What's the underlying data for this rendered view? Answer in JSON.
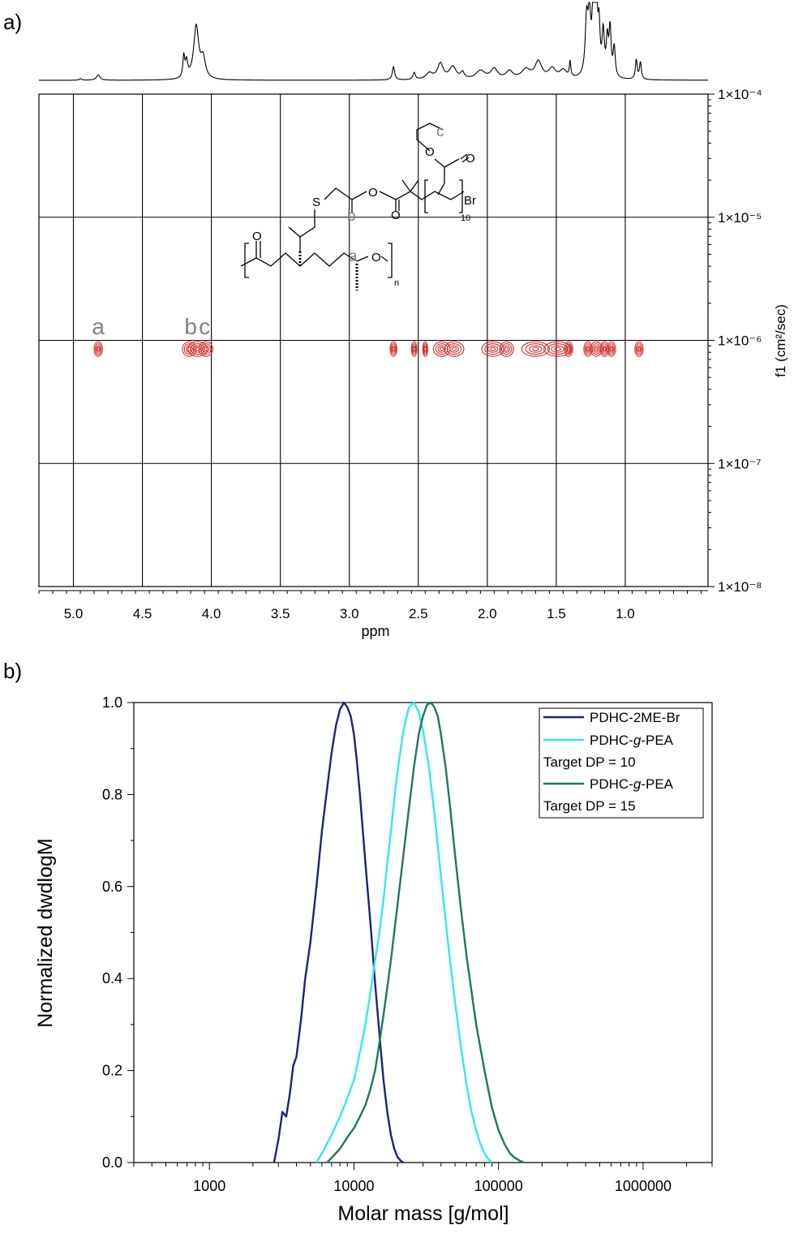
{
  "panel_a": {
    "label": "a)",
    "structure_labels": {
      "a": "a",
      "b": "b",
      "c": "c",
      "n": "n",
      "ten": "10",
      "br": "Br",
      "s": "S",
      "o": "O"
    },
    "peak_labels": [
      "a",
      "b",
      "c"
    ],
    "ppm_peak_positions": [
      4.82,
      4.15,
      4.05
    ],
    "chart_data": {
      "type": "contour",
      "title": "",
      "xlabel": "ppm",
      "ylabel": "f1 (cm²/sec)",
      "x_ticks": [
        "5.0",
        "4.5",
        "4.0",
        "3.5",
        "3.0",
        "2.5",
        "2.0",
        "1.5",
        "1.0"
      ],
      "x_tick_values": [
        5.0,
        4.5,
        4.0,
        3.5,
        3.0,
        2.5,
        2.0,
        1.5,
        1.0
      ],
      "xlim": [
        5.25,
        0.4
      ],
      "y_scale": "log",
      "y_ticks": [
        "1×10⁻⁴",
        "1×10⁻⁵",
        "1×10⁻⁶",
        "1×10⁻⁷",
        "1×10⁻⁸"
      ],
      "y_tick_values": [
        0.0001,
        1e-05,
        1e-06,
        1e-07,
        1e-08
      ],
      "grid": true,
      "diffusion_coefficient": 8.5e-07,
      "contour_peaks": [
        {
          "ppm": 4.82,
          "width": 0.03
        },
        {
          "ppm": 4.16,
          "width": 0.05
        },
        {
          "ppm": 4.1,
          "width": 0.07
        },
        {
          "ppm": 4.04,
          "width": 0.05
        },
        {
          "ppm": 2.68,
          "width": 0.025
        },
        {
          "ppm": 2.53,
          "width": 0.02
        },
        {
          "ppm": 2.45,
          "width": 0.01
        },
        {
          "ppm": 2.33,
          "width": 0.06
        },
        {
          "ppm": 2.24,
          "width": 0.07
        },
        {
          "ppm": 1.96,
          "width": 0.08
        },
        {
          "ppm": 1.86,
          "width": 0.05
        },
        {
          "ppm": 1.65,
          "width": 0.1
        },
        {
          "ppm": 1.49,
          "width": 0.1
        },
        {
          "ppm": 1.41,
          "width": 0.03
        },
        {
          "ppm": 1.27,
          "width": 0.03
        },
        {
          "ppm": 1.21,
          "width": 0.04
        },
        {
          "ppm": 1.15,
          "width": 0.03
        },
        {
          "ppm": 1.1,
          "width": 0.03
        },
        {
          "ppm": 0.9,
          "width": 0.03
        }
      ],
      "projection_peaks": [
        {
          "ppm": 4.82,
          "h": 0.07,
          "w": 0.015
        },
        {
          "ppm": 4.95,
          "h": 0.02,
          "w": 0.01
        },
        {
          "ppm": 4.2,
          "h": 0.27,
          "w": 0.008
        },
        {
          "ppm": 4.18,
          "h": 0.2,
          "w": 0.01
        },
        {
          "ppm": 4.11,
          "h": 0.68,
          "w": 0.022
        },
        {
          "ppm": 4.06,
          "h": 0.25,
          "w": 0.02
        },
        {
          "ppm": 2.68,
          "h": 0.17,
          "w": 0.01
        },
        {
          "ppm": 2.53,
          "h": 0.09,
          "w": 0.01
        },
        {
          "ppm": 2.42,
          "h": 0.08,
          "w": 0.03
        },
        {
          "ppm": 2.34,
          "h": 0.2,
          "w": 0.025
        },
        {
          "ppm": 2.25,
          "h": 0.16,
          "w": 0.03
        },
        {
          "ppm": 2.18,
          "h": 0.08,
          "w": 0.015
        },
        {
          "ppm": 2.05,
          "h": 0.11,
          "w": 0.04
        },
        {
          "ppm": 1.95,
          "h": 0.13,
          "w": 0.03
        },
        {
          "ppm": 1.84,
          "h": 0.1,
          "w": 0.03
        },
        {
          "ppm": 1.72,
          "h": 0.12,
          "w": 0.04
        },
        {
          "ppm": 1.63,
          "h": 0.22,
          "w": 0.03
        },
        {
          "ppm": 1.53,
          "h": 0.13,
          "w": 0.03
        },
        {
          "ppm": 1.45,
          "h": 0.11,
          "w": 0.03
        },
        {
          "ppm": 1.4,
          "h": 0.2,
          "w": 0.006
        },
        {
          "ppm": 1.28,
          "h": 0.72,
          "w": 0.012
        },
        {
          "ppm": 1.26,
          "h": 0.7,
          "w": 0.01
        },
        {
          "ppm": 1.23,
          "h": 1.0,
          "w": 0.012
        },
        {
          "ppm": 1.21,
          "h": 0.95,
          "w": 0.01
        },
        {
          "ppm": 1.19,
          "h": 0.55,
          "w": 0.008
        },
        {
          "ppm": 1.16,
          "h": 0.55,
          "w": 0.01
        },
        {
          "ppm": 1.13,
          "h": 0.45,
          "w": 0.009
        },
        {
          "ppm": 1.11,
          "h": 0.6,
          "w": 0.009
        },
        {
          "ppm": 1.08,
          "h": 0.38,
          "w": 0.009
        },
        {
          "ppm": 0.92,
          "h": 0.25,
          "w": 0.008
        },
        {
          "ppm": 0.89,
          "h": 0.22,
          "w": 0.008
        }
      ]
    }
  },
  "panel_b": {
    "label": "b)",
    "chart_data": {
      "type": "line",
      "title": "",
      "xlabel": "Molar mass [g/mol]",
      "ylabel": "Normalized dwdlogM",
      "x_scale": "log",
      "xlim": [
        300,
        3000000
      ],
      "ylim": [
        0,
        1.0
      ],
      "x_ticks": [
        "1000",
        "10000",
        "100000",
        "1000000"
      ],
      "x_tick_values": [
        1000,
        10000,
        100000,
        1000000
      ],
      "y_ticks": [
        "0.0",
        "0.2",
        "0.4",
        "0.6",
        "0.8",
        "1.0"
      ],
      "y_tick_values": [
        0.0,
        0.2,
        0.4,
        0.6,
        0.8,
        1.0
      ],
      "legend_position": "top-right",
      "legend": [
        {
          "line": "PDHC-2ME-Br"
        },
        {
          "line": "PDHC-g-PEA",
          "prefix": "PDHC-",
          "italic": "g",
          "suffix": "-PEA",
          "note": "Target DP = 10"
        },
        {
          "line": "PDHC-g-PEA",
          "prefix": "PDHC-",
          "italic": "g",
          "suffix": "-PEA",
          "note": "Target DP = 15"
        }
      ],
      "series": [
        {
          "name": "PDHC-2ME-Br",
          "color": "#1a237e",
          "x": [
            2800,
            3000,
            3200,
            3400,
            3600,
            3800,
            4000,
            4300,
            4600,
            5000,
            5500,
            6000,
            6500,
            7000,
            7500,
            8000,
            8500,
            9000,
            9500,
            10000,
            10500,
            11000,
            12000,
            13000,
            14000,
            15000,
            16000,
            17000,
            18000,
            19000,
            20000,
            21000,
            22000
          ],
          "y": [
            0.0,
            0.05,
            0.11,
            0.1,
            0.15,
            0.21,
            0.23,
            0.31,
            0.4,
            0.48,
            0.6,
            0.72,
            0.81,
            0.89,
            0.95,
            0.985,
            1.0,
            0.99,
            0.97,
            0.93,
            0.87,
            0.8,
            0.65,
            0.52,
            0.39,
            0.28,
            0.18,
            0.11,
            0.06,
            0.03,
            0.012,
            0.004,
            0.0
          ]
        },
        {
          "name": "PDHC-g-PEA",
          "color": "#33e8f2",
          "x": [
            5500,
            6000,
            7000,
            8000,
            9000,
            10000,
            11000,
            12000,
            13000,
            14000,
            15000,
            16000,
            17000,
            18000,
            19000,
            20000,
            22000,
            24000,
            26000,
            28000,
            30000,
            33000,
            36000,
            40000,
            45000,
            50000,
            55000,
            60000,
            65000,
            70000,
            75000,
            80000,
            85000,
            90000
          ],
          "y": [
            0.0,
            0.02,
            0.06,
            0.1,
            0.14,
            0.18,
            0.24,
            0.3,
            0.37,
            0.44,
            0.5,
            0.57,
            0.65,
            0.72,
            0.79,
            0.85,
            0.94,
            0.99,
            1.0,
            0.98,
            0.94,
            0.86,
            0.76,
            0.62,
            0.47,
            0.35,
            0.25,
            0.17,
            0.11,
            0.07,
            0.04,
            0.02,
            0.008,
            0.0
          ]
        },
        {
          "name": "PDHC-g-PEA",
          "color": "#1b7a5a",
          "x": [
            6500,
            7000,
            8000,
            9000,
            10000,
            11000,
            12000,
            13000,
            14000,
            15000,
            16000,
            17000,
            18000,
            20000,
            22000,
            24000,
            26000,
            28000,
            30000,
            32000,
            34000,
            36000,
            38000,
            40000,
            43000,
            46000,
            50000,
            55000,
            60000,
            70000,
            80000,
            90000,
            100000,
            110000,
            120000,
            130000,
            140000,
            150000
          ],
          "y": [
            0.0,
            0.01,
            0.03,
            0.055,
            0.075,
            0.1,
            0.125,
            0.16,
            0.2,
            0.26,
            0.32,
            0.38,
            0.44,
            0.56,
            0.67,
            0.77,
            0.86,
            0.93,
            0.97,
            0.995,
            1.0,
            0.99,
            0.97,
            0.93,
            0.86,
            0.78,
            0.67,
            0.55,
            0.45,
            0.3,
            0.2,
            0.12,
            0.07,
            0.04,
            0.02,
            0.01,
            0.004,
            0.0
          ]
        }
      ]
    }
  }
}
